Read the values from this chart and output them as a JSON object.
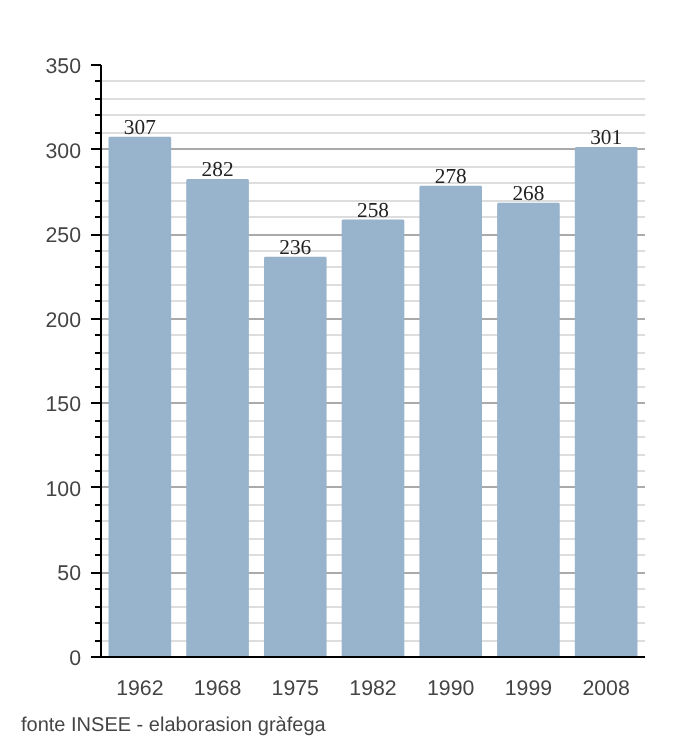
{
  "chart_data": {
    "type": "bar",
    "categories": [
      "1962",
      "1968",
      "1975",
      "1982",
      "1990",
      "1999",
      "2008"
    ],
    "values": [
      307,
      282,
      236,
      258,
      278,
      268,
      301
    ],
    "color": "#98b3cc",
    "ylim": [
      0,
      350
    ],
    "yticks": [
      0,
      50,
      100,
      150,
      200,
      250,
      300,
      350
    ],
    "grid": "y",
    "data_labels": true,
    "annotations": [
      "fonte INSEE - elaborasion gràfega"
    ]
  }
}
